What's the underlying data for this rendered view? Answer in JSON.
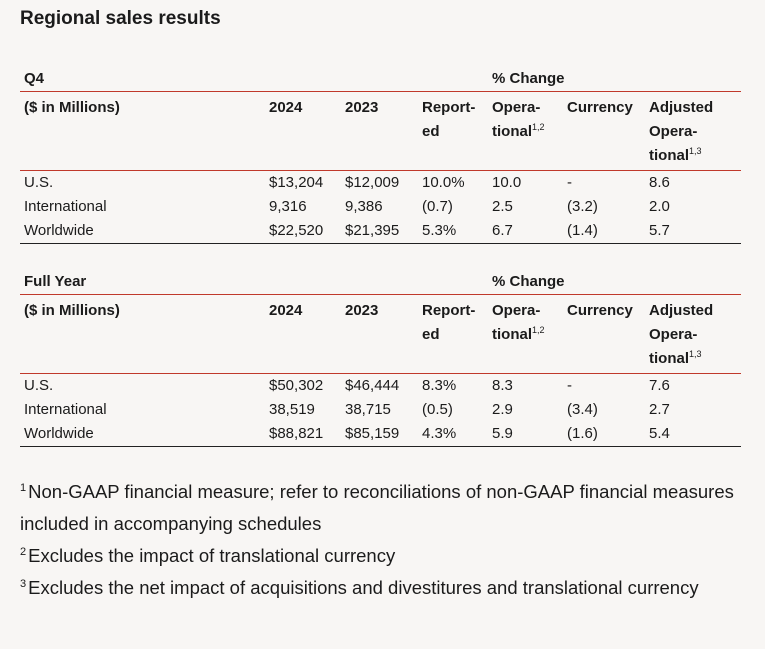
{
  "title": "Regional sales results",
  "columns": {
    "units": "($ in Millions)",
    "y2024": "2024",
    "y2023": "2023",
    "pct_change": "% Change",
    "reported_1": "Report-",
    "reported_2": "ed",
    "operational_1": "Opera-",
    "operational_2": "tional",
    "operational_sup": "1,2",
    "currency": "Currency",
    "adjusted_1": "Adjusted",
    "adjusted_2": "Opera-",
    "adjusted_3": "tional",
    "adjusted_sup": "1,3"
  },
  "q4": {
    "period": "Q4",
    "rows": [
      {
        "region": "U.S.",
        "y2024": "$13,204",
        "y2023": "$12,009",
        "reported": "10.0%",
        "operational": "10.0",
        "currency": "-",
        "adjusted": "8.6"
      },
      {
        "region": "International",
        "y2024": "9,316",
        "y2023": "9,386",
        "reported": "(0.7)",
        "operational": "2.5",
        "currency": "(3.2)",
        "adjusted": "2.0"
      },
      {
        "region": "Worldwide",
        "y2024": "$22,520",
        "y2023": "$21,395",
        "reported": "5.3%",
        "operational": "6.7",
        "currency": "(1.4)",
        "adjusted": "5.7"
      }
    ]
  },
  "full_year": {
    "period": "Full Year",
    "rows": [
      {
        "region": "U.S.",
        "y2024": "$50,302",
        "y2023": "$46,444",
        "reported": "8.3%",
        "operational": "8.3",
        "currency": "-",
        "adjusted": "7.6"
      },
      {
        "region": "International",
        "y2024": "38,519",
        "y2023": "38,715",
        "reported": "(0.5)",
        "operational": "2.9",
        "currency": "(3.4)",
        "adjusted": "2.7"
      },
      {
        "region": "Worldwide",
        "y2024": "$88,821",
        "y2023": "$85,159",
        "reported": "4.3%",
        "operational": "5.9",
        "currency": "(1.6)",
        "adjusted": "5.4"
      }
    ]
  },
  "footnotes": [
    {
      "mark": "1",
      "text": "Non-GAAP financial measure; refer to reconciliations of non-GAAP financial measures included in accompanying schedules"
    },
    {
      "mark": "2",
      "text": "Excludes the impact of translational currency"
    },
    {
      "mark": "3",
      "text": "Excludes the net impact of acquisitions and divestitures and translational currency"
    }
  ]
}
